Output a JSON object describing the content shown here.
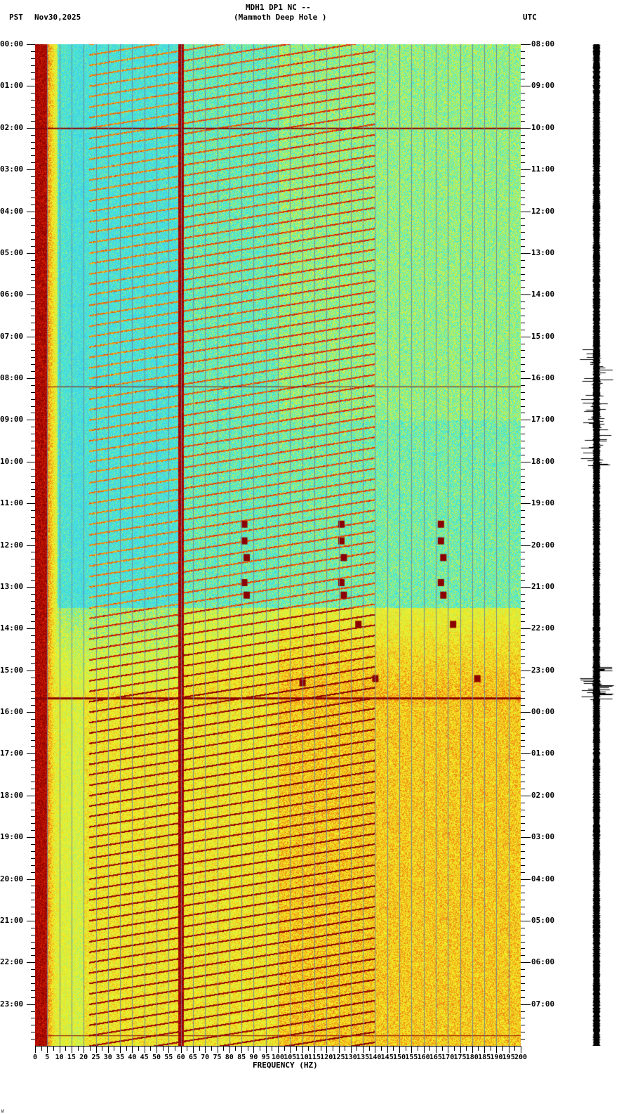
{
  "header": {
    "station_line": "MDH1 DP1 NC --",
    "site_line": "(Mammoth Deep Hole )",
    "left_tz": "PST",
    "date": "Nov30,2025",
    "right_tz": "UTC"
  },
  "footer": {
    "xaxis_title": "FREQUENCY (HZ)",
    "corner_mark": "И"
  },
  "colors": {
    "background_low": "#1e90ff",
    "cyan": "#40e0e0",
    "green_yellow": "#c8f050",
    "yellow": "#f8f020",
    "red": "#e02000",
    "dark_red": "#8b0000",
    "gridline": "#7a8a9a",
    "trace": "#000000"
  },
  "chart_data": {
    "type": "heatmap",
    "title": "MDH1 DP1 NC -- (Mammoth Deep Hole ) spectrogram, Nov30,2025",
    "xlabel": "FREQUENCY (HZ)",
    "ylabel_left": "PST",
    "ylabel_right": "UTC",
    "x_range": [
      0,
      200
    ],
    "x_ticks": [
      0,
      5,
      10,
      15,
      20,
      25,
      30,
      35,
      40,
      45,
      50,
      55,
      60,
      65,
      70,
      75,
      80,
      85,
      90,
      95,
      100,
      105,
      110,
      115,
      120,
      125,
      130,
      135,
      140,
      145,
      150,
      155,
      160,
      165,
      170,
      175,
      180,
      185,
      190,
      195,
      200
    ],
    "x_tick_labels": [
      "0",
      "5",
      "10",
      "15",
      "20",
      "25",
      "30",
      "35",
      "40",
      "45",
      "50",
      "55",
      "60",
      "65",
      "70",
      "75",
      "80",
      "85",
      "90",
      "95",
      "100",
      "105",
      "110",
      "115",
      "120",
      "125",
      "130",
      "135",
      "140",
      "145",
      "150",
      "155",
      "160",
      "165",
      "170",
      "175",
      "180",
      "185",
      "190",
      "195",
      "200"
    ],
    "y_left_labels": [
      "00:00",
      "01:00",
      "02:00",
      "03:00",
      "04:00",
      "05:00",
      "06:00",
      "07:00",
      "08:00",
      "09:00",
      "10:00",
      "11:00",
      "12:00",
      "13:00",
      "14:00",
      "15:00",
      "16:00",
      "17:00",
      "18:00",
      "19:00",
      "20:00",
      "21:00",
      "22:00",
      "23:00"
    ],
    "y_right_labels": [
      "08:00",
      "09:00",
      "10:00",
      "11:00",
      "12:00",
      "13:00",
      "14:00",
      "15:00",
      "16:00",
      "17:00",
      "18:00",
      "19:00",
      "20:00",
      "21:00",
      "22:00",
      "23:00",
      "00:00",
      "01:00",
      "02:00",
      "03:00",
      "04:00",
      "05:00",
      "06:00",
      "07:00"
    ],
    "minor_ticks_per_hour": 5,
    "grid": true,
    "features": [
      {
        "type": "persistent_line",
        "freq_hz": 60,
        "note": "strong 60 Hz power-line band full day"
      },
      {
        "type": "low_freq_band",
        "freq_hz": [
          0,
          5
        ],
        "note": "dark red 0-5 Hz throughout"
      },
      {
        "type": "gliding_harmonics",
        "freq_hz": [
          20,
          130
        ],
        "note": "repeated rising tonal glides every ~15 min"
      },
      {
        "type": "horizontal_line",
        "time_pst": "02:00",
        "note": "broadband line across spectrum"
      },
      {
        "type": "event_cluster",
        "time_pst": [
          "08:30",
          "10:00"
        ],
        "freq_hz": [
          35,
          200
        ],
        "note": "scattered transient arcs"
      },
      {
        "type": "event_cluster",
        "time_pst": [
          "11:30",
          "13:30"
        ],
        "freq_hz": [
          [
            85,
            90
          ],
          [
            125,
            130
          ],
          [
            165,
            170
          ]
        ],
        "note": "repeated dark-red blobs"
      },
      {
        "type": "noise_increase",
        "time_pst": [
          "14:00",
          "23:59"
        ],
        "note": "broadband energy elevated, yellow/red"
      },
      {
        "type": "horizontal_line",
        "time_pst": "15:40",
        "note": "broadband impulse"
      }
    ],
    "colormap": [
      "#1e90ff",
      "#40e0e0",
      "#c8f050",
      "#f8f020",
      "#e02000",
      "#8b0000"
    ],
    "waveform_trace": {
      "bursts_pst": [
        "07:30-08:15",
        "08:30-10:05",
        "15:00-15:40"
      ],
      "note": "black seismogram column right of plot"
    }
  }
}
